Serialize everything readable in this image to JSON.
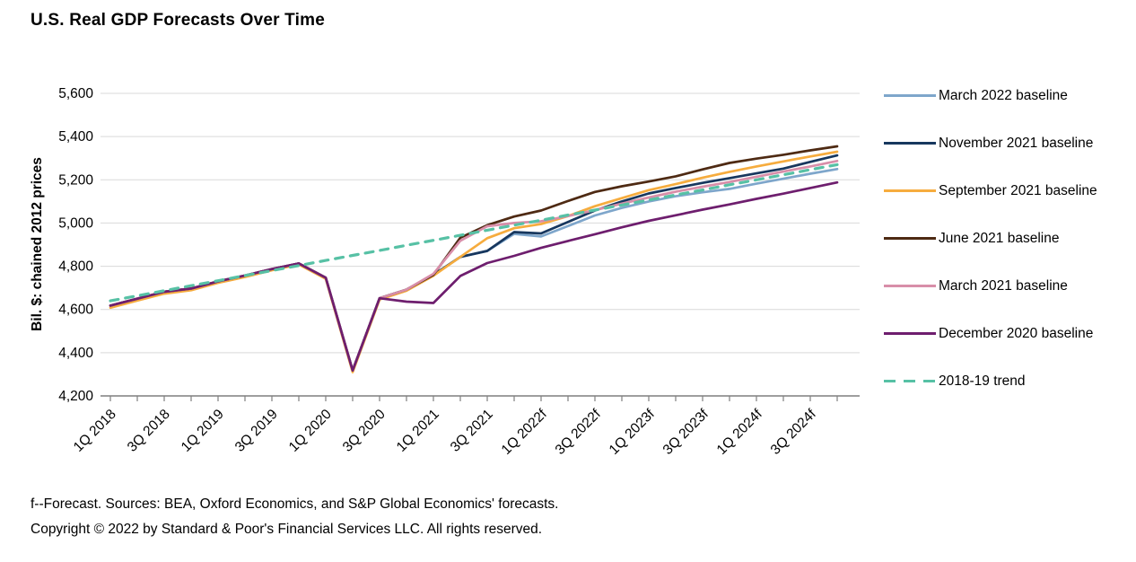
{
  "title": "U.S. Real GDP Forecasts Over Time",
  "footer": {
    "line1": "f--Forecast. Sources: BEA, Oxford Economics, and S&P Global Economics' forecasts.",
    "line2": "Copyright © 2022 by Standard & Poor's Financial Services LLC. All rights reserved."
  },
  "colors": {
    "gridline": "#d9d9d9",
    "axis": "#7f7f7f",
    "text": "#000000"
  },
  "chart_data": {
    "type": "line",
    "title": "U.S. Real GDP Forecasts Over Time",
    "xlabel": "",
    "ylabel": "Bil. $: chained 2012 prices",
    "ylim": [
      4200,
      5600
    ],
    "ytick_step": 200,
    "grid": "horizontal",
    "legend_position": "right",
    "xtick_label_every": 2,
    "categories": [
      "1Q 2018",
      "2Q 2018",
      "3Q 2018",
      "4Q 2018",
      "1Q 2019",
      "2Q 2019",
      "3Q 2019",
      "4Q 2019",
      "1Q 2020",
      "2Q 2020",
      "3Q 2020",
      "4Q 2020",
      "1Q 2021",
      "2Q 2021",
      "3Q 2021",
      "4Q 2021",
      "1Q 2022f",
      "2Q 2022f",
      "3Q 2022f",
      "4Q 2022f",
      "1Q 2023f",
      "2Q 2023f",
      "3Q 2023f",
      "4Q 2023f",
      "1Q 2024f",
      "2Q 2024f",
      "3Q 2024f",
      "4Q 2024f"
    ],
    "series": [
      {
        "name": "March 2022 baseline",
        "color": "#7ea6cb",
        "dashed": false,
        "values": [
          4618,
          4650,
          4682,
          4697,
          4730,
          4757,
          4787,
          4813,
          4747,
          4318,
          4652,
          4692,
          4760,
          4843,
          4871,
          4950,
          4938,
          4986,
          5035,
          5070,
          5100,
          5124,
          5142,
          5158,
          5182,
          5205,
          5228,
          5250
        ]
      },
      {
        "name": "November 2021 baseline",
        "color": "#17375e",
        "dashed": false,
        "values": [
          4618,
          4650,
          4682,
          4697,
          4730,
          4757,
          4787,
          4813,
          4747,
          4318,
          4652,
          4692,
          4760,
          4843,
          4871,
          4958,
          4952,
          5005,
          5058,
          5100,
          5137,
          5162,
          5186,
          5208,
          5230,
          5252,
          5283,
          5313
        ]
      },
      {
        "name": "September 2021 baseline",
        "color": "#f6ac3e",
        "dashed": false,
        "values": [
          4608,
          4641,
          4673,
          4689,
          4723,
          4750,
          4781,
          4808,
          4742,
          4310,
          4646,
          4687,
          4756,
          4843,
          4930,
          4976,
          4995,
          5032,
          5078,
          5115,
          5152,
          5180,
          5210,
          5237,
          5262,
          5285,
          5308,
          5330
        ]
      },
      {
        "name": "June 2021 baseline",
        "color": "#4e2a13",
        "dashed": false,
        "values": [
          4618,
          4650,
          4682,
          4697,
          4730,
          4757,
          4787,
          4813,
          4747,
          4318,
          4652,
          4692,
          4760,
          4932,
          4990,
          5030,
          5058,
          5102,
          5144,
          5170,
          5192,
          5216,
          5248,
          5278,
          5298,
          5316,
          5336,
          5355
        ]
      },
      {
        "name": "March 2021 baseline",
        "color": "#d88ea9",
        "dashed": false,
        "values": [
          4618,
          4650,
          4682,
          4697,
          4730,
          4757,
          4787,
          4813,
          4747,
          4318,
          4652,
          4692,
          4765,
          4918,
          4985,
          5000,
          5008,
          5032,
          5060,
          5090,
          5118,
          5145,
          5168,
          5190,
          5214,
          5238,
          5262,
          5287
        ]
      },
      {
        "name": "December 2020 baseline",
        "color": "#6e1e6e",
        "dashed": false,
        "values": [
          4618,
          4650,
          4682,
          4697,
          4730,
          4757,
          4787,
          4813,
          4747,
          4318,
          4652,
          4636,
          4630,
          4755,
          4815,
          4848,
          4885,
          4917,
          4948,
          4980,
          5010,
          5036,
          5062,
          5086,
          5112,
          5136,
          5162,
          5188
        ]
      },
      {
        "name": "2018-19 trend",
        "color": "#57c1a5",
        "dashed": true,
        "values": [
          4640,
          4663,
          4687,
          4710,
          4733,
          4757,
          4780,
          4803,
          4827,
          4850,
          4873,
          4897,
          4920,
          4943,
          4967,
          4990,
          5013,
          5037,
          5060,
          5083,
          5107,
          5130,
          5153,
          5177,
          5200,
          5223,
          5247,
          5270
        ]
      }
    ]
  }
}
